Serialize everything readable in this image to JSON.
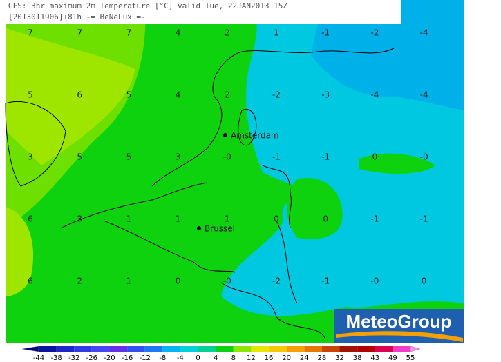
{
  "header": {
    "line1": "GFS: 3hr maximum 2m Temperature [°C] valid Tue, 22JAN2013 15Z",
    "line2": "[2013011906]+81h -= BeNeLux =-"
  },
  "grid": {
    "rows": [
      [
        "7",
        "7",
        "7",
        "4",
        "2",
        "1",
        "-1",
        "-2",
        "-4"
      ],
      [
        "5",
        "6",
        "5",
        "4",
        "2",
        "-2",
        "-3",
        "-4",
        "-4"
      ],
      [
        "3",
        "5",
        "5",
        "3",
        "-0",
        "-1",
        "-1",
        "0",
        "-0"
      ],
      [
        "6",
        "3",
        "1",
        "1",
        "1",
        "0",
        "0",
        "-1",
        "-1"
      ],
      [
        "6",
        "2",
        "1",
        "0",
        "-0",
        "-2",
        "-1",
        "-0",
        "0"
      ]
    ]
  },
  "cities": [
    {
      "name": "Amsterdam"
    },
    {
      "name": "Brussel"
    }
  ],
  "logo": "MeteoGroup",
  "colorbar": {
    "labels": [
      -44,
      -38,
      -32,
      -26,
      -20,
      -16,
      -12,
      -8,
      -4,
      0,
      4,
      8,
      12,
      16,
      20,
      24,
      28,
      32,
      38,
      43,
      49,
      55
    ],
    "colors": [
      "#000080",
      "#0a14a0",
      "#1e28c8",
      "#2d3ce6",
      "#4646f5",
      "#6432e6",
      "#3250f0",
      "#1e78f5",
      "#00b4f0",
      "#00d2dc",
      "#00d296",
      "#0fd20f",
      "#8ce600",
      "#e6e600",
      "#f5c800",
      "#f5a000",
      "#e67800",
      "#c84600",
      "#a01400",
      "#b40000",
      "#dc0050",
      "#f03cc8",
      "#ff8cf0"
    ]
  }
}
